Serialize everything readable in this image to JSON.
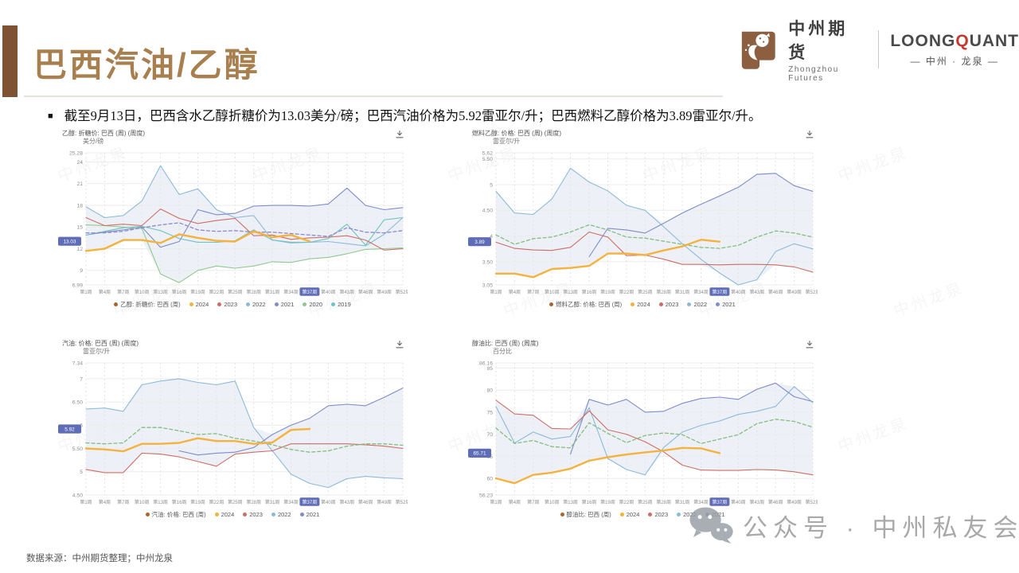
{
  "slide": {
    "title": "巴西汽油/乙醇",
    "bullet_marker": "■",
    "bullet": "截至9月13日，巴西含水乙醇折糖价为13.03美分/磅；巴西汽油价格为5.92雷亚尔/升；巴西燃料乙醇价格为3.89雷亚尔/升。",
    "source": "数据来源：中州期货整理；中州龙泉",
    "wechat": "公众号 · 中州私友会",
    "logo_watermark": "中州龙泉"
  },
  "header": {
    "zz_cn": "中州期货",
    "zz_en": "Zhongzhou Futures",
    "lq_p1": "LOONG",
    "lq_q": "Q",
    "lq_p2": "UANT",
    "lq_cn": "— 中州 · 龙泉 —"
  },
  "colors": {
    "accent_brown": "#A87F4F",
    "bar_brown": "#7E5233",
    "badge": "#5F6CB8",
    "band": "#E8ECF5",
    "series_dot": "#A8642F",
    "y2024": "#F4B23E",
    "y2023": "#CD6E65",
    "y2022": "#8CBAD9",
    "y2021": "#7F8CC9",
    "y2020": "#8FC98F",
    "y2019": "#6FC4BE",
    "avg_purple": "#9187CE",
    "avg_green": "#82BE7E"
  },
  "chart_data": [
    {
      "type": "line",
      "title": "乙醇: 折糖价: 巴西 (周) (周度)",
      "ylabel": "美分/磅",
      "ylim": [
        6.99,
        25.28
      ],
      "yticks": [
        {
          "label": "25.28",
          "v": 25.28
        },
        {
          "label": "24",
          "v": 24
        },
        {
          "label": "21",
          "v": 21
        },
        {
          "label": "18",
          "v": 18
        },
        {
          "label": "15",
          "v": 15
        },
        {
          "label": "12",
          "v": 12
        },
        {
          "label": "9",
          "v": 9
        },
        {
          "label": "6.99",
          "v": 6.99
        }
      ],
      "weeks": [
        1,
        4,
        7,
        10,
        13,
        16,
        19,
        22,
        25,
        28,
        31,
        34,
        37,
        40,
        43,
        46,
        49,
        52
      ],
      "xticks": [
        "第1周",
        "第4周",
        "第7周",
        "第10周",
        "第13周",
        "第16周",
        "第19周",
        "第22周",
        "第25周",
        "第28周",
        "第31周",
        "第34周",
        "第37周",
        "第40周",
        "第43周",
        "第46周",
        "第49周",
        "第52周"
      ],
      "highlight_xtick": "第37周",
      "badge_label": "13.03",
      "badge_value": 13.03,
      "series": [
        {
          "name": "2022",
          "color": "y2022",
          "band": true,
          "width": 1.1,
          "dash": null,
          "values": [
            17.8,
            16.3,
            16.6,
            18.6,
            23.5,
            19.5,
            20.3,
            17.4,
            16.3,
            16.6,
            13.2,
            12.8,
            12.9,
            13.0,
            12.7,
            12.4,
            14.0,
            16.3
          ]
        },
        {
          "name": "2021",
          "color": "y2021",
          "band": true,
          "width": 1.1,
          "dash": null,
          "values": [
            13.9,
            14.3,
            14.6,
            15.0,
            12.2,
            13.0,
            17.4,
            16.7,
            16.9,
            17.9,
            18.0,
            18.0,
            17.9,
            18.2,
            20.4,
            18.0,
            17.4,
            17.7
          ]
        },
        {
          "name": "2020",
          "color": "y2020",
          "band": true,
          "width": 1.1,
          "dash": null,
          "values": [
            15.3,
            15.2,
            15.0,
            14.8,
            8.5,
            7.3,
            9.0,
            9.6,
            9.3,
            9.6,
            10.2,
            10.1,
            10.6,
            10.8,
            11.3,
            11.9,
            12.0,
            12.1
          ]
        },
        {
          "name": "2019",
          "color": "y2019",
          "band": true,
          "width": 1.1,
          "dash": null,
          "values": [
            13.9,
            14.4,
            14.9,
            15.1,
            14.5,
            13.4,
            12.9,
            12.9,
            13.1,
            14.6,
            13.2,
            12.9,
            12.9,
            13.4,
            15.4,
            12.5,
            16.0,
            16.3
          ]
        },
        {
          "name": "2023",
          "color": "y2023",
          "band": true,
          "width": 1.1,
          "dash": null,
          "values": [
            16.3,
            15.2,
            15.4,
            15.2,
            17.5,
            16.2,
            15.5,
            15.9,
            16.2,
            13.8,
            13.9,
            13.3,
            13.5,
            13.6,
            13.8,
            13.2,
            11.8,
            12.0
          ]
        },
        {
          "name": "avg",
          "color": "avg_purple",
          "band": false,
          "width": 1.3,
          "dash": "4 3",
          "values": [
            14.2,
            14.2,
            14.4,
            14.9,
            15.3,
            15.6,
            14.6,
            14.4,
            14.5,
            14.3,
            14.3,
            14.1,
            13.9,
            13.7,
            14.9,
            14.3,
            14.2,
            14.5
          ]
        },
        {
          "name": "2024",
          "color": "y2024",
          "band": true,
          "width": 2.4,
          "dash": null,
          "values": [
            11.7,
            12.0,
            13.2,
            13.2,
            12.8,
            14.0,
            13.5,
            13.1,
            13.0,
            14.4,
            13.6,
            13.9,
            13.03,
            null,
            null,
            null,
            null,
            null
          ]
        }
      ],
      "legend": [
        {
          "label": "乙醇: 折糖价: 巴西 (周)",
          "color": "series_dot"
        },
        {
          "label": "2024",
          "color": "y2024"
        },
        {
          "label": "2023",
          "color": "y2023"
        },
        {
          "label": "2022",
          "color": "y2022"
        },
        {
          "label": "2021",
          "color": "y2021"
        },
        {
          "label": "2020",
          "color": "y2020"
        },
        {
          "label": "2019",
          "color": "y2019"
        }
      ]
    },
    {
      "type": "line",
      "title": "燃料乙醇: 价格: 巴西 (周) (周度)",
      "ylabel": "雷亚尔/升",
      "ylim": [
        3.05,
        5.62
      ],
      "yticks": [
        {
          "label": "5.62",
          "v": 5.62
        },
        {
          "label": "5.50",
          "v": 5.5
        },
        {
          "label": "5",
          "v": 5
        },
        {
          "label": "4.50",
          "v": 4.5
        },
        {
          "label": "4",
          "v": 4
        },
        {
          "label": "3.50",
          "v": 3.5
        },
        {
          "label": "3.05",
          "v": 3.05
        }
      ],
      "weeks": [
        1,
        4,
        7,
        10,
        13,
        16,
        19,
        22,
        25,
        28,
        31,
        34,
        37,
        40,
        43,
        46,
        49,
        52
      ],
      "xticks": [
        "第1周",
        "第4周",
        "第7周",
        "第10周",
        "第13周",
        "第16周",
        "第19周",
        "第22周",
        "第25周",
        "第28周",
        "第31周",
        "第34周",
        "第37周",
        "第40周",
        "第43周",
        "第46周",
        "第49周",
        "第52周"
      ],
      "highlight_xtick": "第37周",
      "badge_label": "3.89",
      "badge_value": 3.89,
      "series": [
        {
          "name": "2022",
          "color": "y2022",
          "band": true,
          "width": 1.1,
          "dash": null,
          "values": [
            4.87,
            4.45,
            4.42,
            4.72,
            5.32,
            5.05,
            4.88,
            4.6,
            4.5,
            4.18,
            3.85,
            3.55,
            3.28,
            3.05,
            3.15,
            3.7,
            3.85,
            3.75
          ]
        },
        {
          "name": "2021",
          "color": "y2021",
          "band": true,
          "width": 1.1,
          "dash": null,
          "values": [
            null,
            null,
            null,
            null,
            null,
            3.6,
            4.15,
            4.12,
            4.06,
            4.25,
            4.45,
            4.62,
            4.78,
            4.95,
            5.2,
            5.22,
            4.98,
            4.87
          ]
        },
        {
          "name": "2023",
          "color": "y2023",
          "band": true,
          "width": 1.1,
          "dash": null,
          "values": [
            3.88,
            3.76,
            3.73,
            3.72,
            3.78,
            4.08,
            3.98,
            3.62,
            3.63,
            3.55,
            3.45,
            3.45,
            3.44,
            3.45,
            3.45,
            3.44,
            3.4,
            3.3
          ]
        },
        {
          "name": "avg",
          "color": "avg_green",
          "band": false,
          "width": 1.3,
          "dash": "4 3",
          "values": [
            4.02,
            3.84,
            3.95,
            3.98,
            4.08,
            4.22,
            4.12,
            3.98,
            3.96,
            3.9,
            3.84,
            3.78,
            3.76,
            3.82,
            3.98,
            4.1,
            4.06,
            3.98
          ]
        },
        {
          "name": "2024",
          "color": "y2024",
          "band": true,
          "width": 2.4,
          "dash": null,
          "values": [
            3.27,
            3.27,
            3.2,
            3.36,
            3.38,
            3.42,
            3.66,
            3.66,
            3.63,
            3.72,
            3.8,
            3.93,
            3.89,
            null,
            null,
            null,
            null,
            null
          ]
        }
      ],
      "legend": [
        {
          "label": "燃料乙醇: 价格: 巴西 (周)",
          "color": "series_dot"
        },
        {
          "label": "2024",
          "color": "y2024"
        },
        {
          "label": "2023",
          "color": "y2023"
        },
        {
          "label": "2022",
          "color": "y2022"
        },
        {
          "label": "2021",
          "color": "y2021"
        }
      ]
    },
    {
      "type": "line",
      "title": "汽油: 价格: 巴西 (周) (周度)",
      "ylabel": "雷亚尔/升",
      "ylim": [
        4.5,
        7.34
      ],
      "yticks": [
        {
          "label": "7.34",
          "v": 7.34
        },
        {
          "label": "7",
          "v": 7
        },
        {
          "label": "6.50",
          "v": 6.5
        },
        {
          "label": "6",
          "v": 6
        },
        {
          "label": "5.50",
          "v": 5.5
        },
        {
          "label": "5",
          "v": 5
        },
        {
          "label": "4.50",
          "v": 4.5
        }
      ],
      "weeks": [
        1,
        4,
        7,
        10,
        13,
        16,
        19,
        22,
        25,
        28,
        31,
        34,
        37,
        40,
        43,
        46,
        49,
        52
      ],
      "xticks": [
        "第1周",
        "第4周",
        "第7周",
        "第10周",
        "第13周",
        "第16周",
        "第19周",
        "第22周",
        "第25周",
        "第28周",
        "第31周",
        "第34周",
        "第37周",
        "第40周",
        "第43周",
        "第46周",
        "第49周",
        "第52周"
      ],
      "highlight_xtick": "第37周",
      "badge_label": "5.92",
      "badge_value": 5.92,
      "series": [
        {
          "name": "2022",
          "color": "y2022",
          "band": true,
          "width": 1.1,
          "dash": null,
          "values": [
            6.35,
            6.37,
            6.3,
            6.87,
            6.95,
            7.0,
            6.92,
            6.87,
            6.95,
            5.95,
            5.45,
            4.95,
            4.75,
            4.66,
            4.85,
            4.9,
            4.87,
            4.85
          ]
        },
        {
          "name": "2021",
          "color": "y2021",
          "band": true,
          "width": 1.1,
          "dash": null,
          "values": [
            null,
            null,
            null,
            null,
            null,
            5.45,
            5.36,
            5.4,
            5.42,
            5.52,
            5.8,
            6.0,
            6.15,
            6.42,
            6.45,
            6.42,
            6.6,
            6.8
          ]
        },
        {
          "name": "2023",
          "color": "y2023",
          "band": true,
          "width": 1.1,
          "dash": null,
          "values": [
            5.05,
            4.98,
            4.98,
            5.4,
            5.38,
            5.32,
            5.22,
            5.12,
            5.38,
            5.42,
            5.45,
            5.6,
            5.6,
            5.6,
            5.6,
            5.58,
            5.55,
            5.5
          ]
        },
        {
          "name": "avg",
          "color": "avg_green",
          "band": false,
          "width": 1.3,
          "dash": "4 3",
          "values": [
            5.62,
            5.6,
            5.62,
            5.95,
            5.95,
            5.88,
            5.8,
            5.82,
            5.72,
            5.66,
            5.58,
            5.48,
            5.42,
            5.45,
            5.55,
            5.6,
            5.6,
            5.57
          ]
        },
        {
          "name": "2024",
          "color": "y2024",
          "band": true,
          "width": 2.4,
          "dash": null,
          "values": [
            5.5,
            5.48,
            5.44,
            5.6,
            5.6,
            5.62,
            5.72,
            5.66,
            5.66,
            5.6,
            5.63,
            5.9,
            5.92,
            null,
            null,
            null,
            null,
            null
          ]
        }
      ],
      "legend": [
        {
          "label": "汽油: 价格: 巴西 (周)",
          "color": "series_dot"
        },
        {
          "label": "2024",
          "color": "y2024"
        },
        {
          "label": "2023",
          "color": "y2023"
        },
        {
          "label": "2022",
          "color": "y2022"
        },
        {
          "label": "2021",
          "color": "y2021"
        }
      ]
    },
    {
      "type": "line",
      "title": "醇油比: 巴西 (周) (周度)",
      "ylabel": "百分比",
      "ylim": [
        56.23,
        86.16
      ],
      "yticks": [
        {
          "label": "86.16",
          "v": 86.16
        },
        {
          "label": "85",
          "v": 85
        },
        {
          "label": "80",
          "v": 80
        },
        {
          "label": "75",
          "v": 75
        },
        {
          "label": "70",
          "v": 70
        },
        {
          "label": "65",
          "v": 65
        },
        {
          "label": "60",
          "v": 60
        },
        {
          "label": "56.23",
          "v": 56.23
        }
      ],
      "weeks": [
        1,
        4,
        7,
        10,
        13,
        16,
        19,
        22,
        25,
        28,
        31,
        34,
        37,
        40,
        43,
        46,
        49,
        52
      ],
      "xticks": [
        "第1周",
        "第4周",
        "第7周",
        "第10周",
        "第13周",
        "第16周",
        "第19周",
        "第22周",
        "第25周",
        "第28周",
        "第31周",
        "第34周",
        "第37周",
        "第40周",
        "第43周",
        "第46周",
        "第49周",
        "第52周"
      ],
      "highlight_xtick": "第37周",
      "badge_label": "65.71",
      "badge_value": 65.71,
      "series": [
        {
          "name": "2022",
          "color": "y2022",
          "band": true,
          "width": 1.1,
          "dash": null,
          "values": [
            76.3,
            68.0,
            70.5,
            68.9,
            69.5,
            76.0,
            64.5,
            62.0,
            60.8,
            67.0,
            70.5,
            72.0,
            73.0,
            74.5,
            75.2,
            76.3,
            80.8,
            77.2
          ]
        },
        {
          "name": "2021",
          "color": "y2021",
          "band": true,
          "width": 1.1,
          "dash": null,
          "values": [
            null,
            null,
            null,
            null,
            65.5,
            77.9,
            76.6,
            77.9,
            75.0,
            75.2,
            77.0,
            78.1,
            78.4,
            77.9,
            80.2,
            81.6,
            78.5,
            77.4
          ]
        },
        {
          "name": "2023",
          "color": "y2023",
          "band": true,
          "width": 1.1,
          "dash": null,
          "values": [
            77.7,
            74.6,
            74.3,
            71.3,
            71.2,
            75.3,
            71.0,
            70.0,
            68.3,
            66.0,
            63.0,
            61.9,
            61.8,
            61.8,
            62.0,
            61.9,
            61.5,
            60.8
          ]
        },
        {
          "name": "avg",
          "color": "avg_green",
          "band": false,
          "width": 1.3,
          "dash": "4 3",
          "values": [
            71.4,
            67.9,
            68.6,
            67.2,
            66.9,
            72.6,
            70.2,
            68.1,
            69.7,
            70.3,
            69.9,
            67.9,
            68.9,
            69.9,
            72.4,
            73.4,
            72.9,
            71.6
          ]
        },
        {
          "name": "2024",
          "color": "y2024",
          "band": true,
          "width": 2.4,
          "dash": null,
          "values": [
            60.0,
            58.9,
            60.8,
            61.3,
            62.2,
            64.0,
            64.8,
            65.4,
            65.9,
            66.3,
            66.9,
            66.8,
            65.71,
            null,
            null,
            null,
            null,
            null
          ]
        }
      ],
      "legend": [
        {
          "label": "醇油比: 巴西 (周)",
          "color": "series_dot"
        },
        {
          "label": "2024",
          "color": "y2024"
        },
        {
          "label": "2023",
          "color": "y2023"
        },
        {
          "label": "2022",
          "color": "y2022"
        },
        {
          "label": "2021",
          "color": "y2021"
        }
      ]
    }
  ]
}
